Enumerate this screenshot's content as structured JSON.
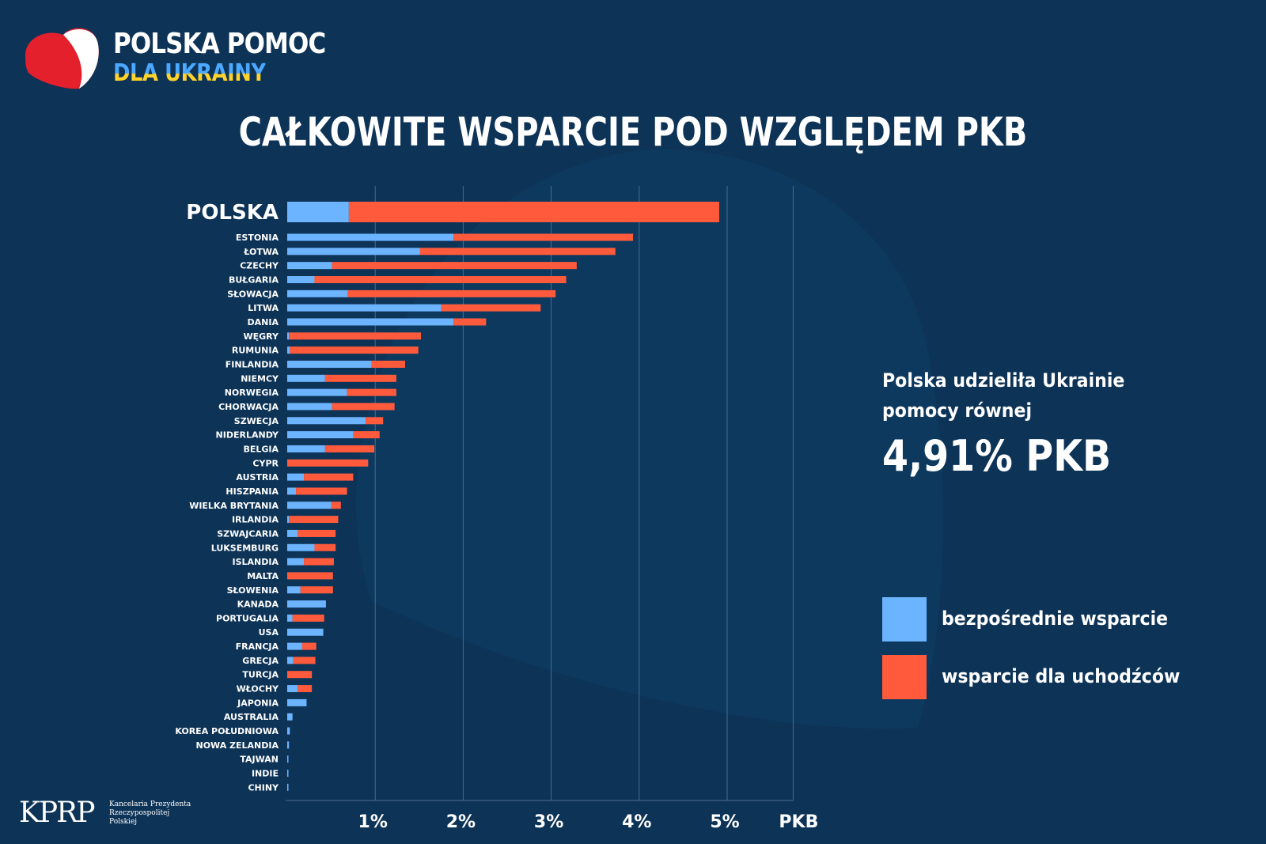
{
  "logo": {
    "title": "POLSKA POMOC",
    "subtitle": "DLA UKRAINY",
    "heart_red": "#e4202c",
    "heart_white": "#ffffff"
  },
  "title": "CAŁKOWITE WSPARCIE  POD WZGLĘDEM PKB",
  "callout": {
    "line1": "Polska udzieliła Ukrainie",
    "line2": "pomocy równej",
    "value": "4,91% PKB"
  },
  "legend": [
    {
      "label": "bezpośrednie wsparcie",
      "color": "#6cb4ff"
    },
    {
      "label": "wsparcie dla uchodźców",
      "color": "#ff5a3c"
    }
  ],
  "footer": {
    "mark": "KPRP",
    "name_line1": "Kancelaria Prezydenta",
    "name_line2": "Rzeczypospolitej",
    "name_line3": "Polskiej"
  },
  "colors": {
    "background": "#0d3357",
    "direct": "#6cb4ff",
    "refugees": "#ff5a3c",
    "gridline": "#4a6b8c"
  },
  "chart_data": {
    "type": "bar",
    "orientation": "horizontal",
    "stacked": true,
    "title": "CAŁKOWITE WSPARCIE  POD WZGLĘDEM PKB",
    "xlabel": "PKB",
    "xlim": [
      0,
      5.75
    ],
    "xticks": [
      1,
      2,
      3,
      4,
      5
    ],
    "xtick_labels": [
      "1%",
      "2%",
      "3%",
      "4%",
      "5%"
    ],
    "grid": true,
    "legend_position": "right",
    "highlight_category": "POLSKA",
    "categories": [
      "POLSKA",
      "ESTONIA",
      "ŁOTWA",
      "CZECHY",
      "BUŁGARIA",
      "SŁOWACJA",
      "LITWA",
      "DANIA",
      "WĘGRY",
      "RUMUNIA",
      "FINLANDIA",
      "NIEMCY",
      "NORWEGIA",
      "CHORWACJA",
      "SZWECJA",
      "NIDERLANDY",
      "BELGIA",
      "CYPR",
      "AUSTRIA",
      "HISZPANIA",
      "WIELKA BRYTANIA",
      "IRLANDIA",
      "SZWAJCARIA",
      "LUKSEMBURG",
      "ISLANDIA",
      "MALTA",
      "SŁOWENIA",
      "KANADA",
      "PORTUGALIA",
      "USA",
      "FRANCJA",
      "GRECJA",
      "TURCJA",
      "WŁOCHY",
      "JAPONIA",
      "AUSTRALIA",
      "KOREA POŁUDNIOWA",
      "NOWA ZELANDIA",
      "TAJWAN",
      "INDIE",
      "CHINY"
    ],
    "series": [
      {
        "name": "bezpośrednie wsparcie",
        "color": "#6cb4ff",
        "values": [
          0.7,
          1.89,
          1.51,
          0.51,
          0.31,
          0.69,
          1.75,
          1.89,
          0.02,
          0.03,
          0.96,
          0.43,
          0.68,
          0.51,
          0.89,
          0.75,
          0.43,
          0.0,
          0.19,
          0.1,
          0.5,
          0.02,
          0.12,
          0.31,
          0.19,
          0.0,
          0.15,
          0.44,
          0.06,
          0.41,
          0.17,
          0.07,
          0.0,
          0.12,
          0.22,
          0.06,
          0.03,
          0.02,
          0.01,
          0.01,
          0.01
        ]
      },
      {
        "name": "wsparcie dla uchodźców",
        "color": "#ff5a3c",
        "values": [
          4.21,
          2.04,
          2.22,
          2.78,
          2.86,
          2.36,
          1.13,
          0.37,
          1.5,
          1.46,
          0.38,
          0.81,
          0.56,
          0.71,
          0.2,
          0.3,
          0.56,
          0.92,
          0.56,
          0.58,
          0.11,
          0.56,
          0.43,
          0.24,
          0.34,
          0.52,
          0.37,
          0.0,
          0.36,
          0.0,
          0.16,
          0.25,
          0.28,
          0.16,
          0.0,
          0.0,
          0.0,
          0.0,
          0.0,
          0.0,
          0.0
        ]
      }
    ]
  }
}
